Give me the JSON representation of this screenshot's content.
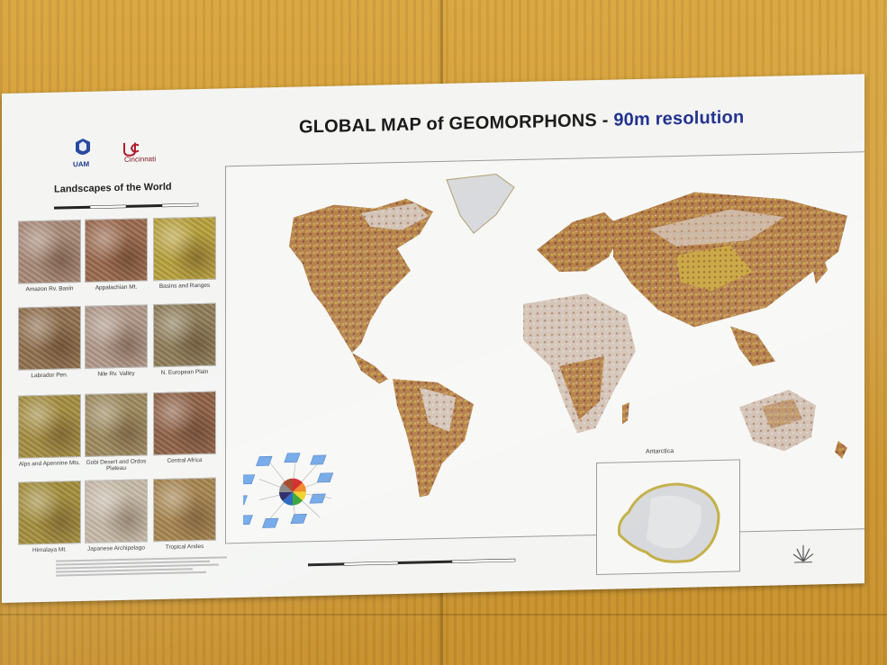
{
  "poster": {
    "title_main": "GLOBAL MAP of GEOMORPHONS - ",
    "title_accent": "90m resolution",
    "panel_title": "Landscapes of the World",
    "logo_left_text": "UAM",
    "logo_right_text": "Cincinnati",
    "antarctica_label": "Antarctica",
    "tiles": [
      {
        "label": "Amazon Rv. Basin",
        "color": "#a98a78"
      },
      {
        "label": "Appalachian Mt.",
        "color": "#9b6a4e"
      },
      {
        "label": "Basins and Ranges",
        "color": "#b9a23c"
      },
      {
        "label": "Labrador Pen.",
        "color": "#8f6e4c"
      },
      {
        "label": "Nile Rv. Valley",
        "color": "#b09888"
      },
      {
        "label": "N. European Plain",
        "color": "#8c7a55"
      },
      {
        "label": "Alps and Apennine Mts.",
        "color": "#a28a3a"
      },
      {
        "label": "Gobi Desert and Ordos Plateau",
        "color": "#9a8658"
      },
      {
        "label": "Central Africa",
        "color": "#8a5a3e"
      },
      {
        "label": "Himalaya Mt.",
        "color": "#9e8830"
      },
      {
        "label": "Japanese Archipelago",
        "color": "#c4b7a4"
      },
      {
        "label": "Tropical Andes",
        "color": "#a07c42"
      }
    ]
  },
  "colors": {
    "wall": "#d09c36",
    "poster": "#f4f5f3",
    "land_brown": "#a86a34",
    "land_ochre": "#c7a23a",
    "land_pale": "#d8cfc6",
    "ice": "#d8d9dc",
    "title_accent": "#1e2f8c"
  }
}
